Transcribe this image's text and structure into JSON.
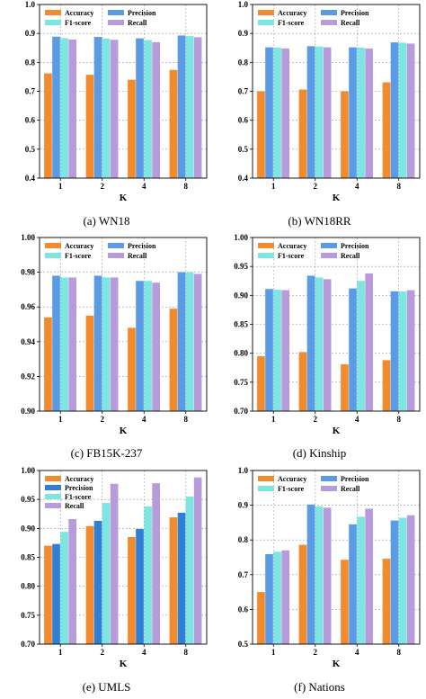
{
  "chart_data": [
    {
      "type": "bar",
      "caption": "(a) WN18",
      "xlabel": "K",
      "categories": [
        "1",
        "2",
        "4",
        "8"
      ],
      "ylim": [
        0.4,
        1.0
      ],
      "yticks": [
        "0.4",
        "0.5",
        "0.6",
        "0.7",
        "0.8",
        "0.9",
        "1.0"
      ],
      "legend_layout": "two-column",
      "series": [
        {
          "name": "Accuracy",
          "color": "#F28A2E",
          "values": [
            0.762,
            0.757,
            0.74,
            0.774
          ]
        },
        {
          "name": "Precision",
          "color": "#5B9BE6",
          "values": [
            0.889,
            0.888,
            0.883,
            0.893
          ]
        },
        {
          "name": "F1-score",
          "color": "#7FE5E0",
          "values": [
            0.884,
            0.882,
            0.877,
            0.891
          ]
        },
        {
          "name": "Recall",
          "color": "#B89BDB",
          "values": [
            0.879,
            0.878,
            0.87,
            0.887
          ]
        }
      ]
    },
    {
      "type": "bar",
      "caption": "(b) WN18RR",
      "xlabel": "K",
      "categories": [
        "1",
        "2",
        "4",
        "8"
      ],
      "ylim": [
        0.4,
        1.0
      ],
      "yticks": [
        "0.4",
        "0.5",
        "0.6",
        "0.7",
        "0.8",
        "0.9",
        "1.0"
      ],
      "legend_layout": "two-column",
      "series": [
        {
          "name": "Accuracy",
          "color": "#F28A2E",
          "values": [
            0.7,
            0.706,
            0.7,
            0.731
          ]
        },
        {
          "name": "Precision",
          "color": "#5B9BE6",
          "values": [
            0.852,
            0.856,
            0.852,
            0.869
          ]
        },
        {
          "name": "F1-score",
          "color": "#7FE5E0",
          "values": [
            0.851,
            0.855,
            0.851,
            0.868
          ]
        },
        {
          "name": "Recall",
          "color": "#B89BDB",
          "values": [
            0.848,
            0.852,
            0.848,
            0.865
          ]
        }
      ]
    },
    {
      "type": "bar",
      "caption": "(c) FB15K-237",
      "xlabel": "K",
      "categories": [
        "1",
        "2",
        "4",
        "8"
      ],
      "ylim": [
        0.9,
        1.0
      ],
      "yticks": [
        "0.90",
        "0.92",
        "0.94",
        "0.96",
        "0.98",
        "1.00"
      ],
      "legend_layout": "two-column",
      "series": [
        {
          "name": "Accuracy",
          "color": "#F28A2E",
          "values": [
            0.954,
            0.955,
            0.948,
            0.959
          ]
        },
        {
          "name": "Precision",
          "color": "#5B9BE6",
          "values": [
            0.978,
            0.978,
            0.975,
            0.98
          ]
        },
        {
          "name": "F1-score",
          "color": "#7FE5E0",
          "values": [
            0.977,
            0.977,
            0.975,
            0.98
          ]
        },
        {
          "name": "Recall",
          "color": "#B89BDB",
          "values": [
            0.977,
            0.977,
            0.974,
            0.979
          ]
        }
      ]
    },
    {
      "type": "bar",
      "caption": "(d) Kinship",
      "xlabel": "K",
      "categories": [
        "1",
        "2",
        "4",
        "8"
      ],
      "ylim": [
        0.7,
        1.0
      ],
      "yticks": [
        "0.70",
        "0.75",
        "0.80",
        "0.85",
        "0.90",
        "0.95",
        "1.00"
      ],
      "legend_layout": "two-column",
      "series": [
        {
          "name": "Accuracy",
          "color": "#F28A2E",
          "values": [
            0.795,
            0.802,
            0.781,
            0.788
          ]
        },
        {
          "name": "Precision",
          "color": "#5B9BE6",
          "values": [
            0.911,
            0.934,
            0.912,
            0.907
          ]
        },
        {
          "name": "F1-score",
          "color": "#7FE5E0",
          "values": [
            0.91,
            0.931,
            0.925,
            0.907
          ]
        },
        {
          "name": "Recall",
          "color": "#B89BDB",
          "values": [
            0.909,
            0.928,
            0.938,
            0.909
          ]
        }
      ]
    },
    {
      "type": "bar",
      "caption": "(e) UMLS",
      "xlabel": "K",
      "categories": [
        "1",
        "2",
        "4",
        "8"
      ],
      "ylim": [
        0.7,
        1.0
      ],
      "yticks": [
        "0.70",
        "0.75",
        "0.80",
        "0.85",
        "0.90",
        "0.95",
        "1.00"
      ],
      "legend_layout": "one-column",
      "series": [
        {
          "name": "Accuracy",
          "color": "#F28A2E",
          "values": [
            0.87,
            0.904,
            0.885,
            0.919
          ]
        },
        {
          "name": "Precision",
          "color": "#2F7FD6",
          "values": [
            0.873,
            0.913,
            0.899,
            0.927
          ]
        },
        {
          "name": "F1-score",
          "color": "#7FE5E0",
          "values": [
            0.894,
            0.944,
            0.938,
            0.955
          ]
        },
        {
          "name": "Recall",
          "color": "#B89BDB",
          "values": [
            0.916,
            0.977,
            0.978,
            0.988
          ]
        }
      ]
    },
    {
      "type": "bar",
      "caption": "(f) Nations",
      "xlabel": "K",
      "categories": [
        "1",
        "2",
        "4",
        "8"
      ],
      "ylim": [
        0.5,
        1.0
      ],
      "yticks": [
        "0.5",
        "0.6",
        "0.7",
        "0.8",
        "0.9",
        "1.0"
      ],
      "legend_layout": "two-column",
      "series": [
        {
          "name": "Accuracy",
          "color": "#F28A2E",
          "values": [
            0.65,
            0.786,
            0.743,
            0.746
          ]
        },
        {
          "name": "Precision",
          "color": "#5B9BE6",
          "values": [
            0.759,
            0.902,
            0.845,
            0.856
          ]
        },
        {
          "name": "F1-score",
          "color": "#7FE5E0",
          "values": [
            0.766,
            0.897,
            0.867,
            0.864
          ]
        },
        {
          "name": "Recall",
          "color": "#B89BDB",
          "values": [
            0.77,
            0.893,
            0.89,
            0.871
          ]
        }
      ]
    }
  ]
}
